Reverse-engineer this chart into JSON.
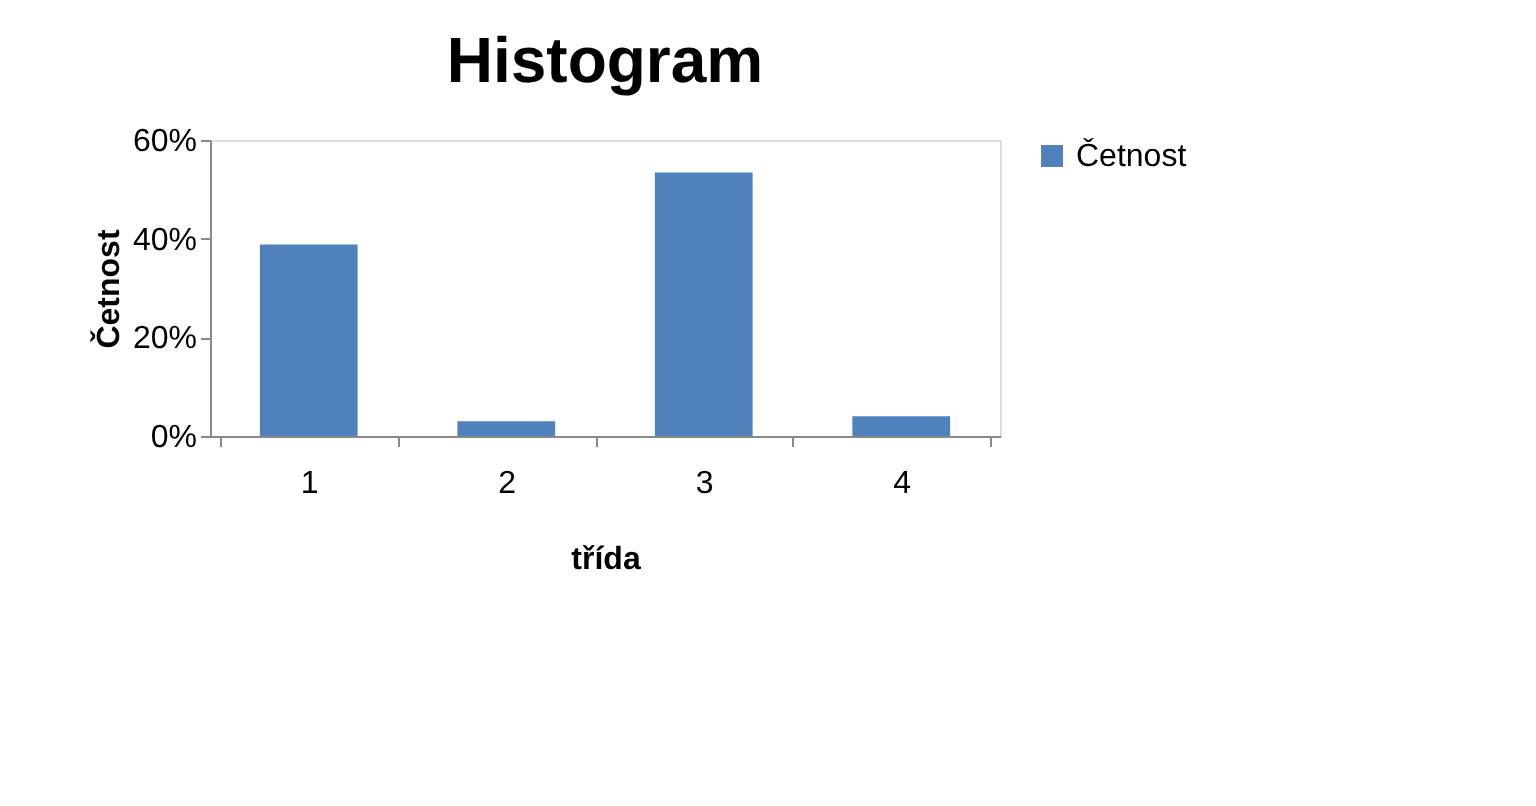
{
  "chart_data": {
    "type": "bar",
    "title": "Histogram",
    "xlabel": "třída",
    "ylabel": "Četnost",
    "categories": [
      "1",
      "2",
      "3",
      "4"
    ],
    "series": [
      {
        "name": "Četnost",
        "color": "#4f81bd",
        "values": [
          38.8,
          3.0,
          53.4,
          4.0
        ]
      }
    ],
    "ylim": [
      0,
      60
    ],
    "yticks": [
      {
        "value": 0,
        "label": "0%"
      },
      {
        "value": 20,
        "label": "20%"
      },
      {
        "value": 40,
        "label": "40%"
      },
      {
        "value": 60,
        "label": "60%"
      }
    ],
    "grid": false,
    "legend": "right"
  }
}
